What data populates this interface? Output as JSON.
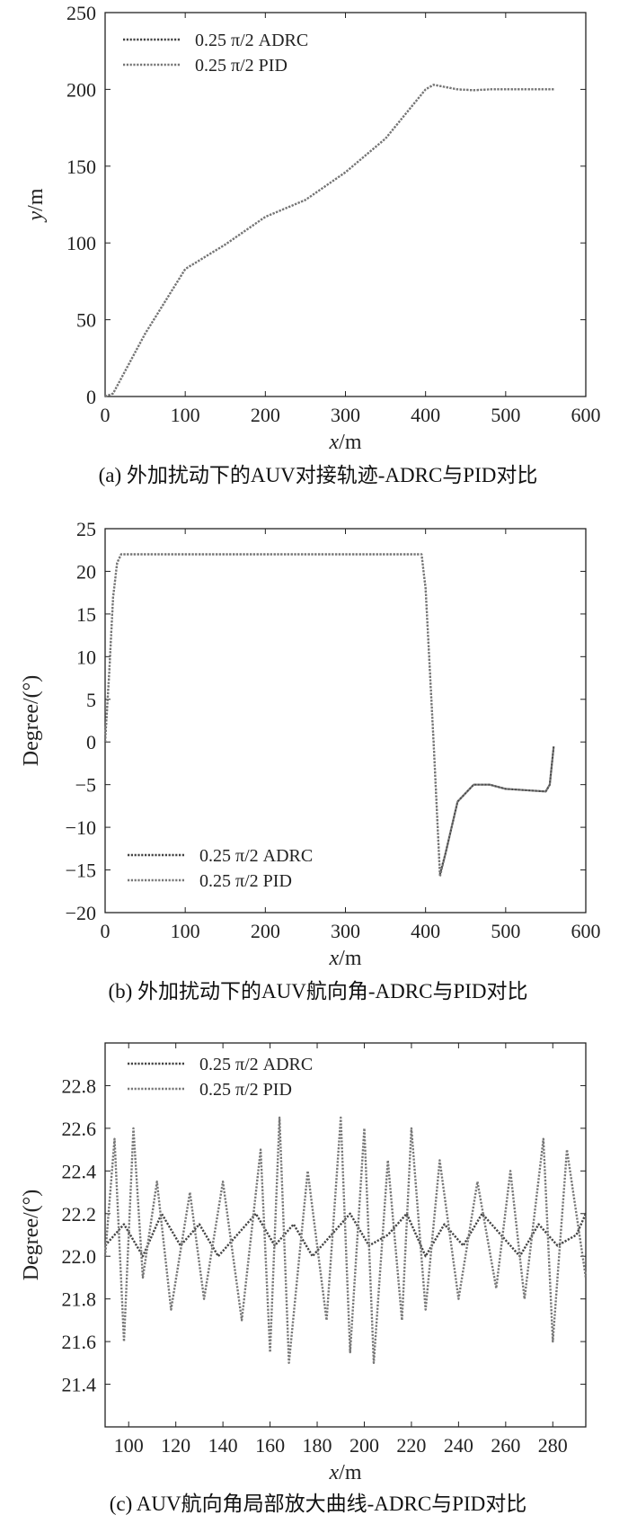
{
  "chart_data": [
    {
      "type": "line",
      "title": "",
      "caption": "(a) 外加扰动下的AUV对接轨迹-ADRC与PID对比",
      "xlabel": "x/m",
      "ylabel": "y/m",
      "xlim": [
        0,
        600
      ],
      "ylim": [
        0,
        250
      ],
      "xticks": [
        0,
        100,
        200,
        300,
        400,
        500,
        600
      ],
      "yticks": [
        0,
        50,
        100,
        150,
        200,
        250
      ],
      "legend_position": "top-left",
      "series": [
        {
          "name": "0.25 π/2 ADRC",
          "color": "#444444",
          "x": [
            0,
            10,
            50,
            100,
            150,
            200,
            250,
            300,
            350,
            400,
            410,
            420,
            440,
            460,
            480,
            500,
            530,
            560
          ],
          "y": [
            0,
            2,
            41,
            83,
            99,
            117,
            128,
            146,
            168,
            200,
            203,
            202,
            200,
            199.5,
            200,
            200,
            200,
            200
          ]
        },
        {
          "name": "0.25 π/2 PID",
          "color": "#777777",
          "x": [
            0,
            10,
            50,
            100,
            150,
            200,
            250,
            300,
            350,
            400,
            410,
            420,
            440,
            460,
            480,
            500,
            530,
            560
          ],
          "y": [
            0,
            2,
            41,
            83,
            99,
            117,
            128,
            146,
            168,
            200,
            203,
            202,
            200,
            199.5,
            200,
            200,
            200,
            200
          ]
        }
      ]
    },
    {
      "type": "line",
      "title": "",
      "caption": "(b) 外加扰动下的AUV航向角-ADRC与PID对比",
      "xlabel": "x/m",
      "ylabel": "Degree/(°)",
      "xlim": [
        0,
        600
      ],
      "ylim": [
        -20,
        25
      ],
      "xticks": [
        0,
        100,
        200,
        300,
        400,
        500,
        600
      ],
      "yticks": [
        -20,
        -15,
        -10,
        -5,
        0,
        5,
        10,
        15,
        20,
        25
      ],
      "legend_position": "bottom-left",
      "series": [
        {
          "name": "0.25 π/2 ADRC",
          "color": "#444444",
          "x": [
            0,
            5,
            10,
            15,
            20,
            100,
            200,
            300,
            395,
            400,
            410,
            418,
            425,
            440,
            460,
            480,
            500,
            550,
            555,
            560
          ],
          "y": [
            0,
            8,
            17,
            21,
            22,
            22,
            22,
            22,
            22,
            18,
            0,
            -15.5,
            -13,
            -7,
            -5,
            -5,
            -5.5,
            -5.8,
            -5,
            -0.5
          ]
        },
        {
          "name": "0.25 π/2 PID",
          "color": "#777777",
          "x": [
            0,
            5,
            10,
            15,
            20,
            100,
            200,
            300,
            395,
            400,
            410,
            418,
            425,
            440,
            460,
            480,
            500,
            550,
            555,
            560
          ],
          "y": [
            0,
            8,
            17,
            21,
            22,
            22,
            22,
            22,
            22,
            18,
            0,
            -15.8,
            -13,
            -7,
            -5,
            -5,
            -5.5,
            -5.8,
            -5,
            -0.5
          ]
        }
      ]
    },
    {
      "type": "line",
      "title": "",
      "caption": "(c) AUV航向角局部放大曲线-ADRC与PID对比",
      "xlabel": "x/m",
      "ylabel": "Degree/(°)",
      "xlim": [
        90,
        294
      ],
      "ylim": [
        21.2,
        23.0
      ],
      "xticks": [
        100,
        120,
        140,
        160,
        180,
        200,
        220,
        240,
        260,
        280
      ],
      "yticks": [
        21.4,
        21.6,
        21.8,
        22.0,
        22.2,
        22.4,
        22.6,
        22.8
      ],
      "legend_position": "top-left",
      "series": [
        {
          "name": "0.25 π/2 ADRC",
          "color": "#444444",
          "x": [
            90,
            98,
            106,
            114,
            122,
            130,
            138,
            146,
            154,
            162,
            170,
            178,
            186,
            194,
            202,
            210,
            218,
            226,
            234,
            242,
            250,
            258,
            266,
            274,
            282,
            290,
            294
          ],
          "y": [
            22.05,
            22.15,
            22.0,
            22.2,
            22.05,
            22.15,
            22.0,
            22.1,
            22.2,
            22.05,
            22.15,
            22.0,
            22.1,
            22.2,
            22.05,
            22.1,
            22.2,
            22.0,
            22.15,
            22.05,
            22.2,
            22.1,
            22.0,
            22.15,
            22.05,
            22.1,
            22.2
          ]
        },
        {
          "name": "0.25 π/2 PID",
          "color": "#777777",
          "x": [
            90,
            94,
            98,
            102,
            106,
            112,
            118,
            126,
            132,
            140,
            148,
            156,
            160,
            164,
            168,
            176,
            184,
            190,
            194,
            200,
            204,
            210,
            216,
            220,
            226,
            232,
            240,
            248,
            256,
            262,
            268,
            276,
            280,
            286,
            294
          ],
          "y": [
            22.0,
            22.55,
            21.6,
            22.6,
            21.9,
            22.35,
            21.75,
            22.3,
            21.8,
            22.35,
            21.7,
            22.5,
            21.55,
            22.65,
            21.5,
            22.4,
            21.7,
            22.65,
            21.55,
            22.6,
            21.5,
            22.45,
            21.7,
            22.6,
            21.75,
            22.45,
            21.8,
            22.35,
            21.85,
            22.4,
            21.8,
            22.55,
            21.6,
            22.5,
            21.9
          ]
        }
      ]
    }
  ]
}
